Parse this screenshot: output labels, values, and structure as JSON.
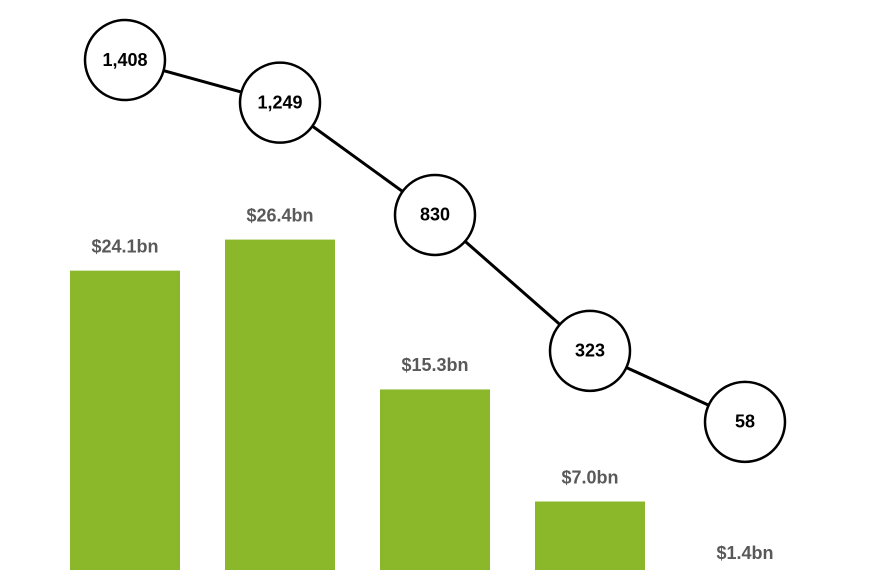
{
  "chart_data": {
    "type": "bar-line",
    "categories": [
      null,
      null,
      null,
      null,
      null
    ],
    "series": [
      {
        "type": "bar",
        "color": "#8ab82a",
        "label_color": "#595959",
        "values": [
          24.1,
          26.4,
          15.3,
          7.0,
          1.4
        ],
        "value_labels": [
          "$24.1bn",
          "$26.4bn",
          "$15.3bn",
          "$7.0bn",
          "$1.4bn"
        ]
      },
      {
        "type": "line",
        "axis": "y2",
        "color": "#000000",
        "values": [
          1408,
          1249,
          830,
          323,
          58
        ],
        "value_labels": [
          "1,408",
          "1,249",
          "830",
          "323",
          "58"
        ]
      }
    ],
    "ylim": [
      0,
      40
    ],
    "y2lim": [
      0,
      1600
    ]
  }
}
